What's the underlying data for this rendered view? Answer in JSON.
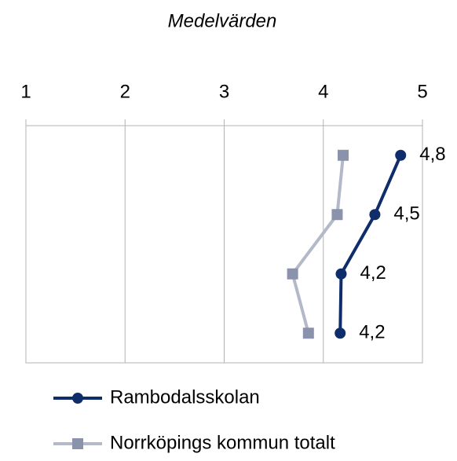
{
  "chart_data": {
    "type": "line",
    "orientation": "horizontal",
    "title": "Medelvärden",
    "categories": [
      null,
      null,
      null,
      null
    ],
    "xlim": [
      1,
      5
    ],
    "xticks": [
      1,
      2,
      3,
      4,
      5
    ],
    "grid": true,
    "legend": "bottom",
    "series": [
      {
        "name": "Rambodalsskolan",
        "color": "#0f2d6b",
        "marker": "circle",
        "values": [
          4.78,
          4.52,
          4.18,
          4.17
        ],
        "value_labels": [
          "4,8",
          "4,5",
          "4,2",
          "4,2"
        ]
      },
      {
        "name": "Norrköpings kommun totalt",
        "color": "#b3b9c9",
        "marker_color": "#8a93ab",
        "marker": "square",
        "values": [
          4.2,
          4.14,
          3.69,
          3.85
        ]
      }
    ]
  }
}
